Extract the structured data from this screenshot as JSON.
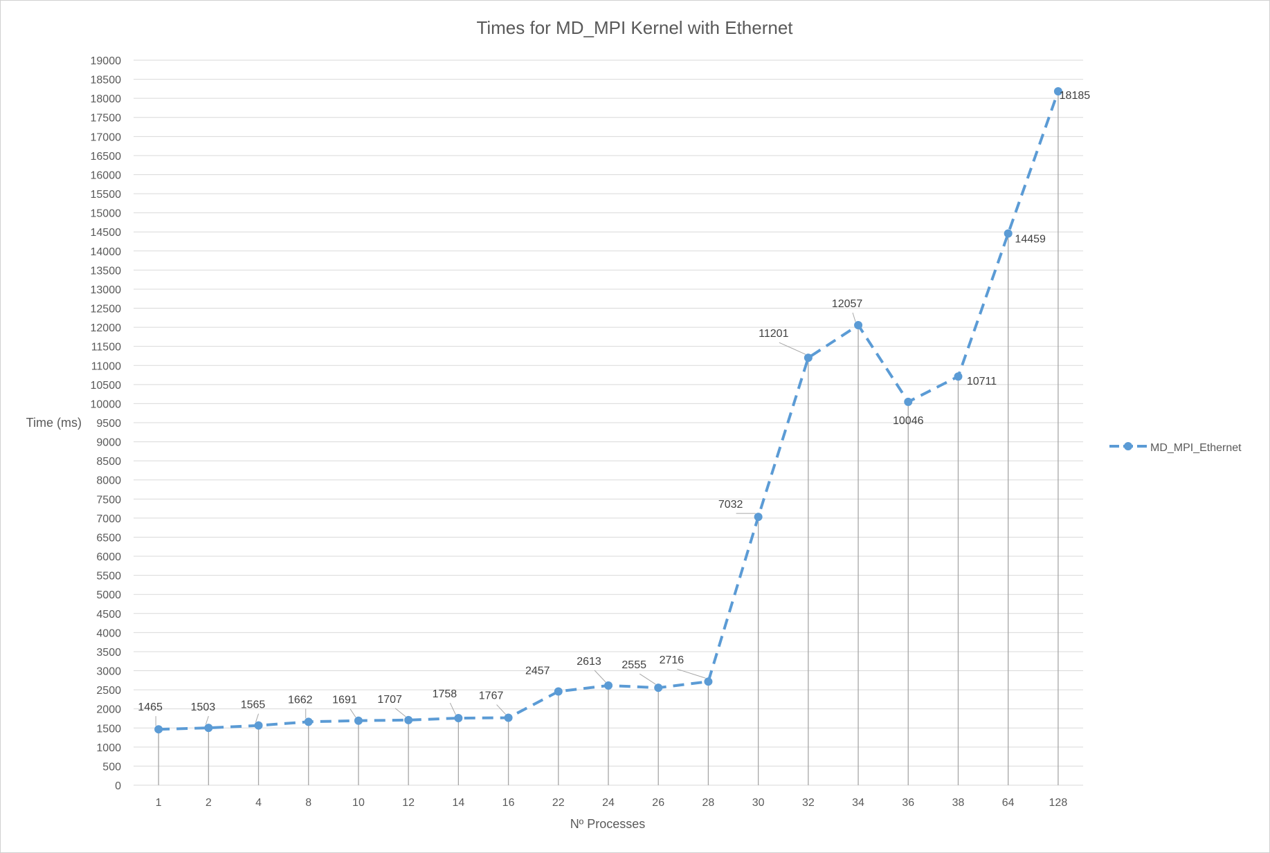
{
  "chart_data": {
    "type": "line",
    "title": "Times for MD_MPI Kernel with Ethernet",
    "xlabel": "Nº Processes",
    "ylabel": "Time (ms)",
    "categories": [
      "1",
      "2",
      "4",
      "8",
      "10",
      "12",
      "14",
      "16",
      "22",
      "24",
      "26",
      "28",
      "30",
      "32",
      "34",
      "36",
      "38",
      "64",
      "128"
    ],
    "series": [
      {
        "name": "MD_MPI_Ethernet",
        "values": [
          1465,
          1503,
          1565,
          1662,
          1691,
          1707,
          1758,
          1767,
          2457,
          2613,
          2555,
          2716,
          7032,
          11201,
          12057,
          10046,
          10711,
          14459,
          18185
        ]
      }
    ],
    "ylim": [
      0,
      19000
    ],
    "ytick_step": 500,
    "grid": "horizontal",
    "drop_lines": true,
    "line_style": "dashed",
    "legend": "right",
    "colors": {
      "series": "#5b9bd5",
      "grid": "#d9d9d9",
      "drop_line": "#a6a6a6",
      "text": "#595959"
    }
  }
}
